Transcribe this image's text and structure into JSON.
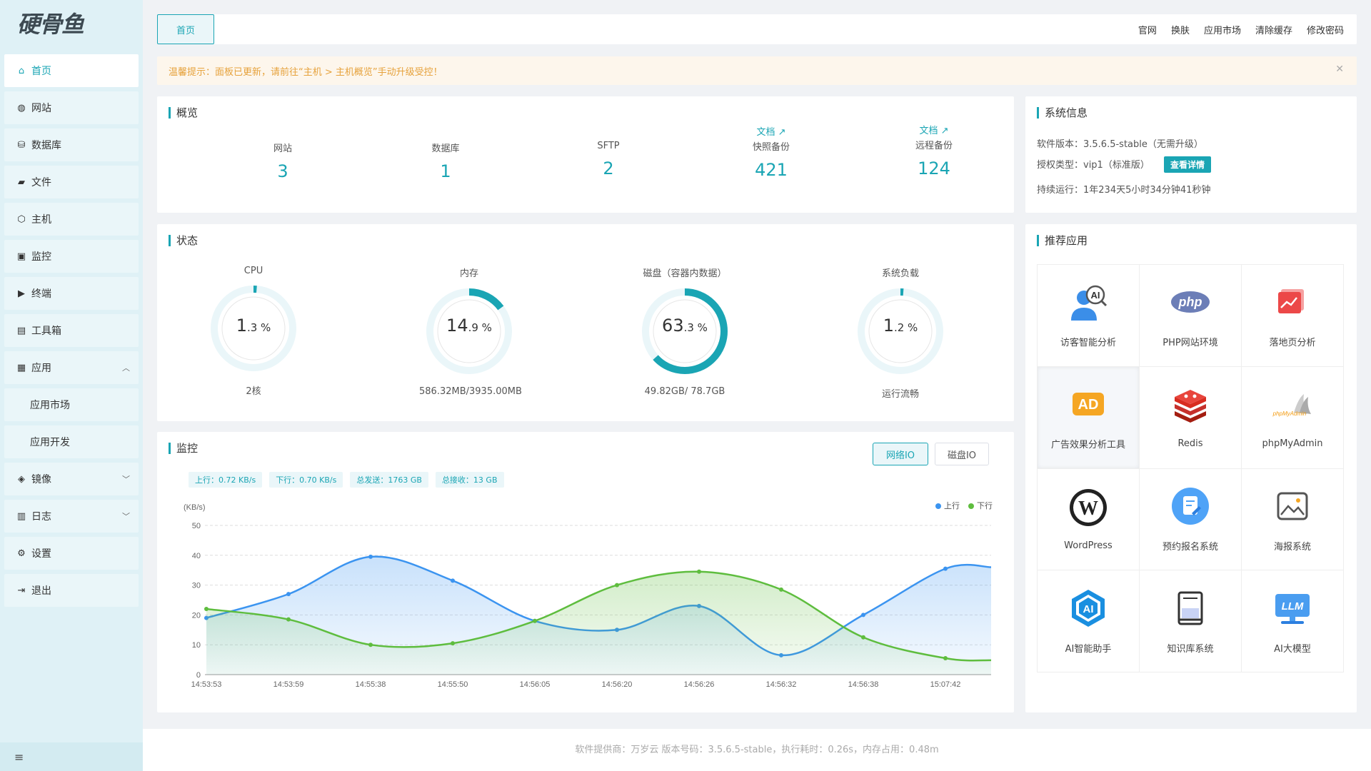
{
  "logo": "硬骨鱼",
  "sidebar": {
    "items": [
      {
        "label": "首页",
        "icon": "home-icon"
      },
      {
        "label": "网站",
        "icon": "globe-icon"
      },
      {
        "label": "数据库",
        "icon": "database-icon"
      },
      {
        "label": "文件",
        "icon": "folder-icon"
      },
      {
        "label": "主机",
        "icon": "cube-icon"
      },
      {
        "label": "监控",
        "icon": "monitor-icon"
      },
      {
        "label": "终端",
        "icon": "terminal-icon"
      },
      {
        "label": "工具箱",
        "icon": "toolbox-icon"
      },
      {
        "label": "应用",
        "icon": "grid-icon"
      },
      {
        "label": "应用市场"
      },
      {
        "label": "应用开发"
      },
      {
        "label": "镜像",
        "icon": "box-icon"
      },
      {
        "label": "日志",
        "icon": "log-icon"
      },
      {
        "label": "设置",
        "icon": "gear-icon"
      },
      {
        "label": "退出",
        "icon": "logout-icon"
      }
    ],
    "footer_icon": "≡"
  },
  "topbar": {
    "home_tab": "首页",
    "links": [
      "官网",
      "换肤",
      "应用市场",
      "清除缓存",
      "修改密码"
    ]
  },
  "notice": {
    "text": "温馨提示：面板已更新，请前往“主机 > 主机概览”手动升级受控！"
  },
  "overview": {
    "title": "概览",
    "doc_label": "文档",
    "items": [
      {
        "label": "网站",
        "value": "3"
      },
      {
        "label": "数据库",
        "value": "1"
      },
      {
        "label": "SFTP",
        "value": "2"
      },
      {
        "label": "快照备份",
        "value": "421"
      },
      {
        "label": "远程备份",
        "value": "124"
      }
    ]
  },
  "system": {
    "title": "系统信息",
    "version": "软件版本：3.5.6.5-stable（无需升级）",
    "license": "授权类型：vip1（标准版）",
    "detail_btn": "查看详情",
    "uptime": "持续运行：1年234天5小时34分钟41秒钟"
  },
  "status": {
    "title": "状态",
    "gauges": [
      {
        "label": "CPU",
        "int": "1",
        "dec": ".3",
        "percent": 1.3,
        "sub": "2核"
      },
      {
        "label": "内存",
        "int": "14",
        "dec": ".9",
        "percent": 14.9,
        "sub": "586.32MB/3935.00MB"
      },
      {
        "label": "磁盘（容器内数据）",
        "int": "63",
        "dec": ".3",
        "percent": 63.3,
        "sub": "49.82GB/ 78.7GB"
      },
      {
        "label": "系统负载",
        "int": "1",
        "dec": ".2",
        "percent": 1.2,
        "sub": "运行流畅"
      }
    ],
    "accent": "#1aa5b4"
  },
  "monitor": {
    "title": "监控",
    "buttons": [
      "网络IO",
      "磁盘IO"
    ],
    "pills": [
      "上行：0.72 KB/s",
      "下行：0.70 KB/s",
      "总发送：1763 GB",
      "总接收：13 GB"
    ]
  },
  "chart_data": {
    "type": "line",
    "ylabel": "(KB/s)",
    "ylim": [
      0,
      50
    ],
    "yticks": [
      0,
      10,
      20,
      30,
      40,
      50
    ],
    "categories": [
      "14:53:53",
      "14:53:59",
      "14:55:38",
      "14:55:50",
      "14:56:05",
      "14:56:20",
      "14:56:26",
      "14:56:32",
      "14:56:38",
      "15:07:42"
    ],
    "series": [
      {
        "name": "上行",
        "color": "#3b94f0",
        "values": [
          19,
          27,
          39.5,
          31.5,
          18,
          15,
          23,
          6.5,
          20,
          35.5
        ]
      },
      {
        "name": "下行",
        "color": "#5ebd3e",
        "values": [
          22,
          18.5,
          10,
          10.5,
          18,
          30,
          34.5,
          28.5,
          12.5,
          5.5
        ]
      }
    ]
  },
  "apps": {
    "title": "推荐应用",
    "items": [
      {
        "label": "访客智能分析",
        "icon": "ai-visitor-icon"
      },
      {
        "label": "PHP网站环境",
        "icon": "php-icon"
      },
      {
        "label": "落地页分析",
        "icon": "landing-page-icon"
      },
      {
        "label": "广告效果分析工具",
        "icon": "ad-icon"
      },
      {
        "label": "Redis",
        "icon": "redis-icon"
      },
      {
        "label": "phpMyAdmin",
        "icon": "phpmyadmin-icon"
      },
      {
        "label": "WordPress",
        "icon": "wordpress-icon"
      },
      {
        "label": "预约报名系统",
        "icon": "booking-icon"
      },
      {
        "label": "海报系统",
        "icon": "poster-icon"
      },
      {
        "label": "AI智能助手",
        "icon": "ai-assistant-icon"
      },
      {
        "label": "知识库系统",
        "icon": "book-icon"
      },
      {
        "label": "AI大模型",
        "icon": "llm-icon"
      }
    ]
  },
  "footer": {
    "text": "软件提供商：万岁云  版本号码：3.5.6.5-stable，执行耗时：0.26s，内存占用：0.48m"
  }
}
